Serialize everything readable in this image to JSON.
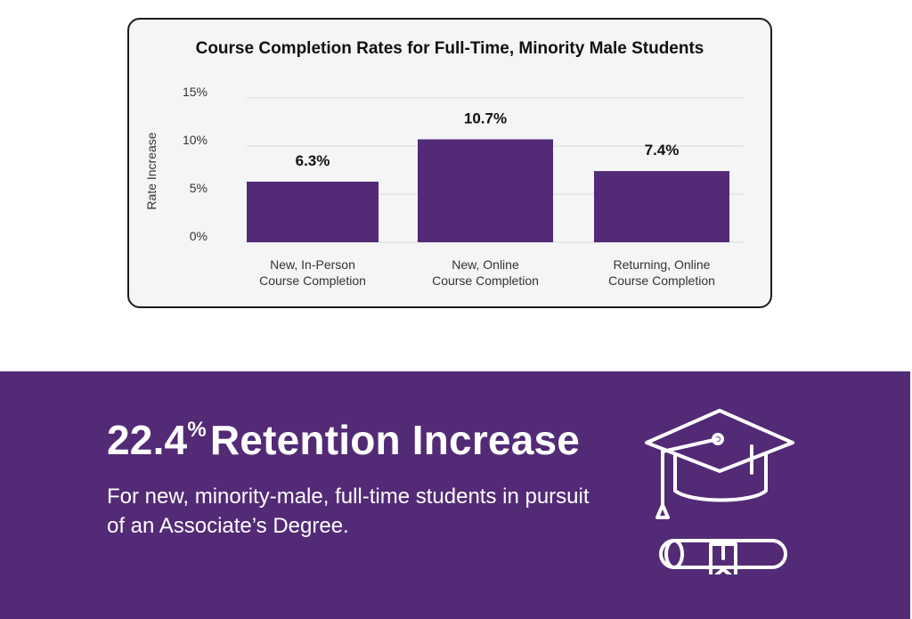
{
  "chart_data": {
    "type": "bar",
    "title": "Course Completion Rates for Full-Time, Minority Male Students",
    "ylabel": "Rate Increase",
    "yticks": [
      "15%",
      "10%",
      "5%",
      "0%"
    ],
    "ylim": [
      0,
      15
    ],
    "grid": true,
    "categories": [
      [
        "New, In-Person",
        "Course Completion"
      ],
      [
        "New, Online",
        "Course Completion"
      ],
      [
        "Returning, Online",
        "Course Completion"
      ]
    ],
    "values": [
      6.3,
      10.7,
      7.4
    ],
    "data_labels": [
      "6.3%",
      "10.7%",
      "7.4%"
    ],
    "bar_color": "#522a76"
  },
  "retention": {
    "value": "22.4",
    "unit": "%",
    "label": "Retention Increase",
    "description": "For new, minority-male, full-time students in pursuit of an Associate’s Degree.",
    "icon": "graduation-cap-diploma-icon",
    "band_color": "#522a76"
  }
}
